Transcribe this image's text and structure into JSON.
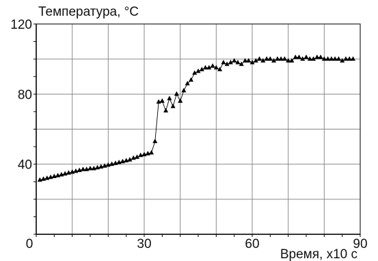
{
  "chart_data": {
    "type": "line",
    "title": "",
    "ylabel": "Температура, °C",
    "xlabel": "Время, x10 с",
    "xlim": [
      0,
      90
    ],
    "ylim": [
      0,
      120
    ],
    "x_ticks": [
      0,
      30,
      60,
      90
    ],
    "y_ticks": [
      40,
      80,
      120
    ],
    "y_tick_labels_shown": [
      "120",
      "80",
      "40"
    ],
    "grid": true,
    "grid_step_x": 10,
    "grid_step_y": 20,
    "marker": "triangle",
    "line_color": "#000000",
    "series": [
      {
        "x": [
          1,
          2,
          3,
          4,
          5,
          6,
          7,
          8,
          9,
          10,
          11,
          12,
          13,
          14,
          15,
          16,
          17,
          18,
          19,
          20,
          21,
          22,
          23,
          24,
          25,
          26,
          27,
          28,
          29,
          30,
          31,
          32,
          33,
          34,
          35,
          36,
          37,
          38,
          39,
          40,
          41,
          42,
          43,
          44,
          45,
          46,
          47,
          48,
          49,
          50,
          51,
          52,
          53,
          54,
          55,
          56,
          57,
          58,
          59,
          60,
          61,
          62,
          63,
          64,
          65,
          66,
          67,
          68,
          69,
          70,
          71,
          72,
          73,
          74,
          75,
          76,
          77,
          78,
          79,
          80,
          81,
          82,
          83,
          84,
          85,
          86,
          87,
          88
        ],
        "y": [
          31,
          31.5,
          32,
          32.5,
          33,
          33.5,
          34,
          34.5,
          35,
          35.5,
          36,
          36.5,
          37,
          37,
          37.5,
          37.5,
          38,
          38.5,
          39,
          39.5,
          40,
          40.5,
          41,
          41.5,
          42,
          42.5,
          43.5,
          44,
          45,
          45.5,
          46,
          46.5,
          53,
          75.5,
          76,
          70.5,
          77.5,
          73,
          80,
          76,
          82,
          86,
          88,
          92,
          93,
          94,
          95,
          95,
          96,
          95,
          94,
          98,
          97,
          98,
          99,
          98,
          97,
          99,
          99,
          98,
          99,
          100,
          99,
          100,
          100,
          99,
          100,
          100,
          100,
          99,
          99,
          101,
          101,
          100,
          101,
          100,
          100,
          101,
          101,
          100,
          100,
          100,
          100,
          100,
          99,
          100,
          100,
          100
        ]
      }
    ]
  }
}
